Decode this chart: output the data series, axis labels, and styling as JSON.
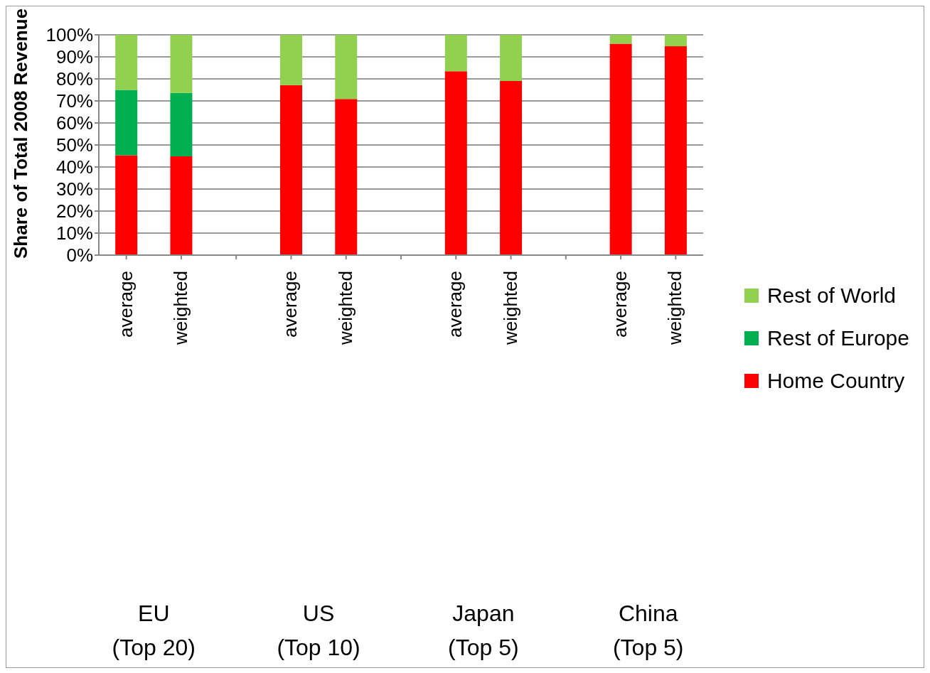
{
  "chart_data": {
    "type": "bar",
    "stacked": true,
    "ylabel": "Share of Total 2008 Revenue",
    "categories": [
      "average",
      "weighted",
      null,
      "average",
      "weighted",
      null,
      "average",
      "weighted",
      null,
      "average",
      "weighted"
    ],
    "series": [
      {
        "name": "Home Country",
        "color": "#ff0000",
        "values": [
          45.3,
          44.8,
          null,
          77.2,
          70.9,
          null,
          83.5,
          79.0,
          null,
          96.0,
          94.8
        ]
      },
      {
        "name": "Rest of Europe",
        "color": "#00b050",
        "values": [
          29.7,
          28.8,
          null,
          0,
          0,
          null,
          0,
          0,
          null,
          0,
          0
        ]
      },
      {
        "name": "Rest of World",
        "color": "#92d050",
        "values": [
          25.0,
          26.4,
          null,
          22.8,
          29.1,
          null,
          16.5,
          21.0,
          null,
          4.0,
          5.2
        ]
      }
    ],
    "ylim": [
      0,
      100
    ],
    "yticks": [
      {
        "value": 0,
        "label": "0%"
      },
      {
        "value": 10,
        "label": "10%"
      },
      {
        "value": 20,
        "label": "20%"
      },
      {
        "value": 30,
        "label": "30%"
      },
      {
        "value": 40,
        "label": "40%"
      },
      {
        "value": 50,
        "label": "50%"
      },
      {
        "value": 60,
        "label": "60%"
      },
      {
        "value": 70,
        "label": "70%"
      },
      {
        "value": 80,
        "label": "80%"
      },
      {
        "value": 90,
        "label": "90%"
      },
      {
        "value": 100,
        "label": "100%"
      }
    ],
    "grid": "y",
    "legend": "right",
    "annotations": [
      "EU\n(Top 20)",
      "US\n(Top 10)",
      "Japan\n(Top 5)",
      "China\n(Top 5)"
    ]
  }
}
